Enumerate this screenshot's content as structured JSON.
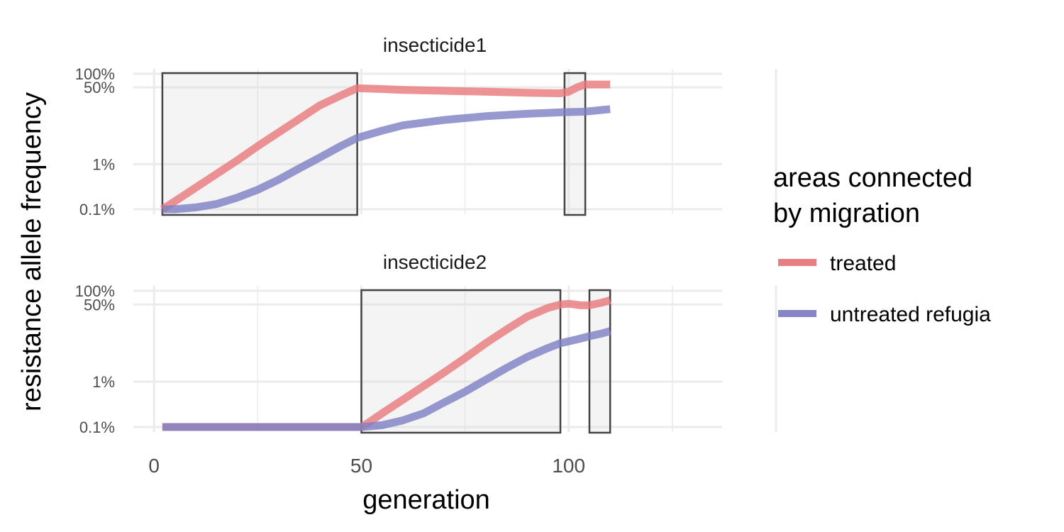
{
  "chart_data": {
    "type": "line",
    "xlabel": "generation",
    "ylabel": "resistance allele frequency",
    "x_ticks": [
      0,
      50,
      100
    ],
    "xlim": [
      -5,
      137
    ],
    "y_ticks": [
      {
        "label": "0.1%",
        "value": 0.001
      },
      {
        "label": "1%",
        "value": 0.01
      },
      {
        "label": "50%",
        "value": 0.5
      },
      {
        "label": "100%",
        "value": 1.0
      }
    ],
    "y_scale": "log",
    "grid": true,
    "legend": {
      "title_lines": [
        "areas connected",
        "by migration"
      ],
      "placement": "right",
      "entries": [
        {
          "label": "treated",
          "color": "#E8787C"
        },
        {
          "label": "untreated refugia",
          "color": "#7E7EC4"
        }
      ]
    },
    "panels": [
      {
        "title": "insecticide1",
        "boxes": [
          [
            2,
            49
          ],
          [
            99,
            104
          ]
        ],
        "series": [
          {
            "name": "treated",
            "color": "#E8787C",
            "points": [
              [
                2,
                0.001
              ],
              [
                5,
                0.0015
              ],
              [
                10,
                0.003
              ],
              [
                15,
                0.006
              ],
              [
                20,
                0.012
              ],
              [
                25,
                0.025
              ],
              [
                30,
                0.05
              ],
              [
                35,
                0.1
              ],
              [
                40,
                0.2
              ],
              [
                45,
                0.33
              ],
              [
                49,
                0.48
              ],
              [
                55,
                0.46
              ],
              [
                60,
                0.44
              ],
              [
                70,
                0.42
              ],
              [
                80,
                0.4
              ],
              [
                90,
                0.38
              ],
              [
                98,
                0.37
              ],
              [
                100,
                0.4
              ],
              [
                102,
                0.5
              ],
              [
                104,
                0.58
              ],
              [
                110,
                0.58
              ]
            ]
          },
          {
            "name": "untreated refugia",
            "color": "#7E7EC4",
            "points": [
              [
                2,
                0.001
              ],
              [
                5,
                0.001
              ],
              [
                10,
                0.0011
              ],
              [
                15,
                0.0013
              ],
              [
                20,
                0.0018
              ],
              [
                25,
                0.0027
              ],
              [
                30,
                0.0045
              ],
              [
                35,
                0.008
              ],
              [
                40,
                0.014
              ],
              [
                45,
                0.025
              ],
              [
                49,
                0.038
              ],
              [
                55,
                0.055
              ],
              [
                60,
                0.072
              ],
              [
                70,
                0.095
              ],
              [
                80,
                0.115
              ],
              [
                90,
                0.13
              ],
              [
                98,
                0.14
              ],
              [
                104,
                0.145
              ],
              [
                110,
                0.165
              ]
            ]
          }
        ]
      },
      {
        "title": "insecticide2",
        "boxes": [
          [
            50,
            98
          ],
          [
            105,
            110
          ]
        ],
        "series": [
          {
            "name": "treated",
            "color": "#E8787C",
            "points": [
              [
                2,
                0.001
              ],
              [
                50,
                0.001
              ],
              [
                52,
                0.0013
              ],
              [
                55,
                0.002
              ],
              [
                60,
                0.004
              ],
              [
                65,
                0.008
              ],
              [
                70,
                0.016
              ],
              [
                75,
                0.033
              ],
              [
                80,
                0.07
              ],
              [
                85,
                0.14
              ],
              [
                90,
                0.27
              ],
              [
                95,
                0.42
              ],
              [
                98,
                0.5
              ],
              [
                100,
                0.52
              ],
              [
                103,
                0.48
              ],
              [
                105,
                0.48
              ],
              [
                108,
                0.55
              ],
              [
                110,
                0.62
              ]
            ]
          },
          {
            "name": "untreated refugia",
            "color": "#7E7EC4",
            "points": [
              [
                2,
                0.001
              ],
              [
                50,
                0.001
              ],
              [
                55,
                0.0011
              ],
              [
                60,
                0.0014
              ],
              [
                65,
                0.002
              ],
              [
                70,
                0.0035
              ],
              [
                75,
                0.006
              ],
              [
                80,
                0.011
              ],
              [
                85,
                0.02
              ],
              [
                90,
                0.035
              ],
              [
                95,
                0.055
              ],
              [
                98,
                0.07
              ],
              [
                102,
                0.085
              ],
              [
                105,
                0.1
              ],
              [
                108,
                0.115
              ],
              [
                110,
                0.13
              ]
            ]
          }
        ]
      }
    ]
  }
}
